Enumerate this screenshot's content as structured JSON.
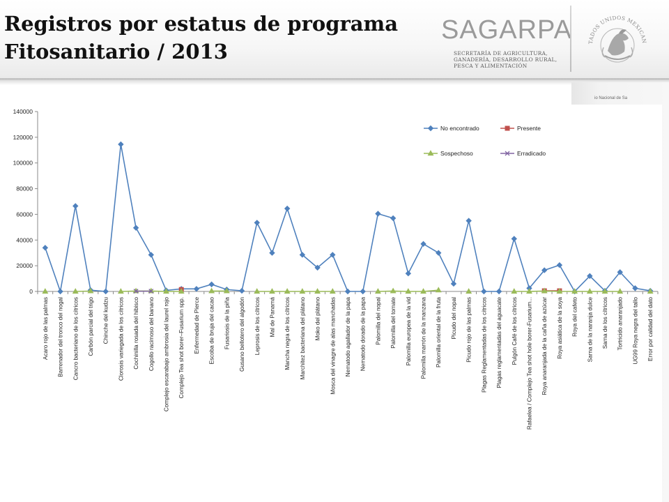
{
  "slide": {
    "title_line1": "Registros por estatus de programa",
    "title_line2": "Fitosanitario / 2013"
  },
  "brand": {
    "name": "SAGARPA",
    "sub1": "SECRETARÍA DE AGRICULTURA,",
    "sub2": "GANADERÍA, DESARROLLO RURAL,",
    "sub3": "PESCA Y ALIMENTACIÓN",
    "seal_text": "ESTADOS UNIDOS MEXICANOS",
    "panel_text": "io Nacional de Sa"
  },
  "colors": {
    "no_encontrado": "#4F81BD",
    "presente": "#C0504D",
    "sospechoso": "#9BBB59",
    "erradicado": "#8064A2"
  },
  "chart_data": {
    "type": "line",
    "title": "",
    "xlabel": "",
    "ylabel": "",
    "ylim": [
      0,
      140000
    ],
    "yticks": [
      "0",
      "20000",
      "40000",
      "60000",
      "80000",
      "100000",
      "120000",
      "140000"
    ],
    "grid": false,
    "legend_position": "top-right",
    "categories": [
      "Acaro rojo de las palmas",
      "Barrenador del tronco del nogal",
      "Cancro bacteriano de los cítricos",
      "Carbón parcial del trigo",
      "Chinche del kudzu",
      "Clorosis variegada de los cítricos",
      "Cochinilla rosada del hibisco",
      "Cogollo racimoso del banano",
      "Complejo escarabajo ambrosia del laurel rojo",
      "Complejo Tea shot borer–Fusarium spp.",
      "Enfermedad de Pierce",
      "Escoba de bruja del cacao",
      "Fusariosis de la piña",
      "Gusano bellotero del algodón",
      "Leprosis de los cítricos",
      "Mal de Panamá",
      "Mancha negra de los cítricos",
      "Marchitez bacteriana del plátano",
      "Moko del plátano",
      "Mosca del vinagre de alas manchadas",
      "Nematodo agallador de la papa",
      "Nematodo dorado de la papa",
      "Palomilla del nopal",
      "Palomilla del tomate",
      "Palomilla europea de la vid",
      "Palomilla marrón de la manzana",
      "Palomilla oriental de la fruta",
      "Picudo del nopal",
      "Picudo rojo de las palmas",
      "Plagas Reglamentadas de los cítricos",
      "Plagas reglamentadas del aguacate",
      "Pulgón Café de los cítricos",
      "Rafaelea / Complejo Tea shot hole borer-Fusarium...",
      "Roya anaranjada de la caña de azúcar",
      "Roya asiática de la soya",
      "Roya del cafeto",
      "Sarna de la naranja dulce",
      "Sarna de los cítricos",
      "Tortricido anaranjado",
      "UG99 Roya negra del tallo",
      "Error por calidad del dato"
    ],
    "series": [
      {
        "name": "No encontrado",
        "marker": "diamond",
        "values": [
          34000,
          0,
          66500,
          1000,
          0,
          114500,
          49500,
          28500,
          800,
          2000,
          2000,
          5500,
          1500,
          500,
          53500,
          30000,
          64500,
          28500,
          18500,
          28500,
          0,
          0,
          60500,
          57000,
          14000,
          37000,
          30000,
          6000,
          55000,
          0,
          0,
          41000,
          2500,
          16500,
          20500,
          0,
          12000,
          500,
          15000,
          2500,
          500
        ]
      },
      {
        "name": "Presente",
        "marker": "square",
        "points": [
          [
            9,
            1500
          ],
          [
            33,
            500
          ],
          [
            34,
            500
          ]
        ]
      },
      {
        "name": "Sospechoso",
        "marker": "triangle",
        "values": [
          0,
          null,
          0,
          300,
          null,
          0,
          300,
          300,
          0,
          0,
          null,
          300,
          300,
          null,
          0,
          0,
          0,
          0,
          0,
          0,
          null,
          null,
          0,
          300,
          0,
          0,
          1000,
          null,
          0,
          null,
          null,
          0,
          0,
          300,
          0,
          0,
          0,
          0,
          0,
          null,
          0
        ]
      },
      {
        "name": "Erradicado",
        "marker": "x",
        "points": [
          [
            6,
            200
          ],
          [
            7,
            200
          ]
        ]
      }
    ]
  }
}
